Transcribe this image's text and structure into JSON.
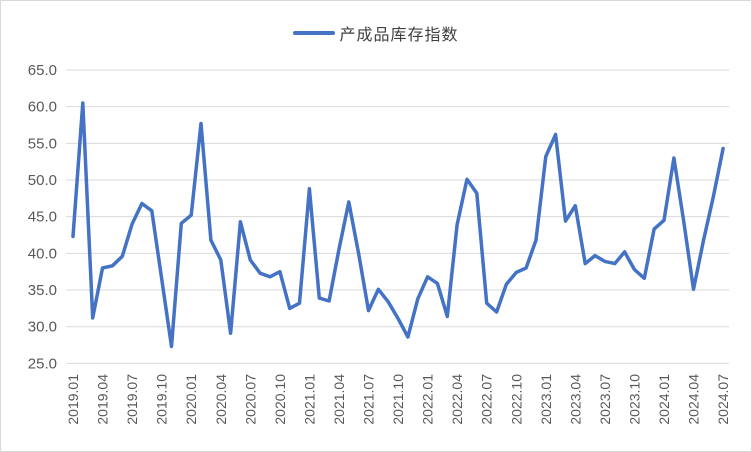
{
  "legend": {
    "label": "产成品库存指数",
    "line_color": "#4472C4"
  },
  "chart_data": {
    "type": "line",
    "title": "",
    "series": [
      {
        "name": "产成品库存指数",
        "color": "#4472C4",
        "values": [
          42.3,
          60.5,
          31.2,
          38.0,
          38.3,
          39.6,
          44.0,
          46.8,
          45.8,
          36.6,
          27.3,
          44.1,
          45.2,
          57.7,
          41.8,
          39.1,
          29.1,
          44.3,
          39.1,
          37.3,
          36.8,
          37.5,
          32.5,
          33.2,
          48.8,
          33.9,
          33.5,
          40.5,
          47.0,
          40.0,
          32.2,
          35.1,
          33.4,
          31.1,
          28.6,
          33.8,
          36.8,
          35.9,
          31.4,
          43.9,
          50.1,
          48.2,
          33.2,
          32.0,
          35.8,
          37.4,
          38.0,
          41.8,
          53.2,
          56.2,
          44.4,
          46.5,
          38.6,
          39.7,
          38.9,
          38.6,
          40.2,
          37.8,
          36.6,
          43.3,
          44.5,
          53.0,
          44.4,
          35.1,
          41.7,
          47.7,
          54.3
        ]
      }
    ],
    "x": [
      "2019.01",
      "2019.02",
      "2019.03",
      "2019.04",
      "2019.05",
      "2019.06",
      "2019.07",
      "2019.08",
      "2019.09",
      "2019.10",
      "2019.11",
      "2019.12",
      "2020.01",
      "2020.02",
      "2020.03",
      "2020.04",
      "2020.05",
      "2020.06",
      "2020.07",
      "2020.08",
      "2020.09",
      "2020.10",
      "2020.11",
      "2020.12",
      "2021.01",
      "2021.02",
      "2021.03",
      "2021.04",
      "2021.05",
      "2021.06",
      "2021.07",
      "2021.08",
      "2021.09",
      "2021.10",
      "2021.11",
      "2021.12",
      "2022.01",
      "2022.02",
      "2022.03",
      "2022.04",
      "2022.05",
      "2022.06",
      "2022.07",
      "2022.08",
      "2022.09",
      "2022.10",
      "2022.11",
      "2022.12",
      "2023.01",
      "2023.02",
      "2023.03",
      "2023.04",
      "2023.05",
      "2023.06",
      "2023.07",
      "2023.08",
      "2023.09",
      "2023.10",
      "2023.11",
      "2023.12",
      "2024.01",
      "2024.02",
      "2024.03",
      "2024.04",
      "2024.05",
      "2024.06",
      "2024.07"
    ],
    "x_tick_labels": [
      "2019.01",
      "2019.04",
      "2019.07",
      "2019.10",
      "2020.01",
      "2020.04",
      "2020.07",
      "2020.10",
      "2021.01",
      "2021.04",
      "2021.07",
      "2021.10",
      "2022.01",
      "2022.04",
      "2022.07",
      "2022.10",
      "2023.01",
      "2023.04",
      "2023.07",
      "2023.10",
      "2024.01",
      "2024.04",
      "2024.07"
    ],
    "y_tick_labels": [
      "65.0",
      "60.0",
      "55.0",
      "50.0",
      "45.0",
      "40.0",
      "35.0",
      "30.0",
      "25.0"
    ],
    "ylim": [
      25,
      65
    ],
    "grid": true,
    "legend_position": "top-center",
    "colors": {
      "gridline": "#D9D9D9",
      "axis_text": "#595959",
      "legend_text": "#404040",
      "background": "#FFFFFF",
      "border": "#D9D9D9"
    }
  }
}
